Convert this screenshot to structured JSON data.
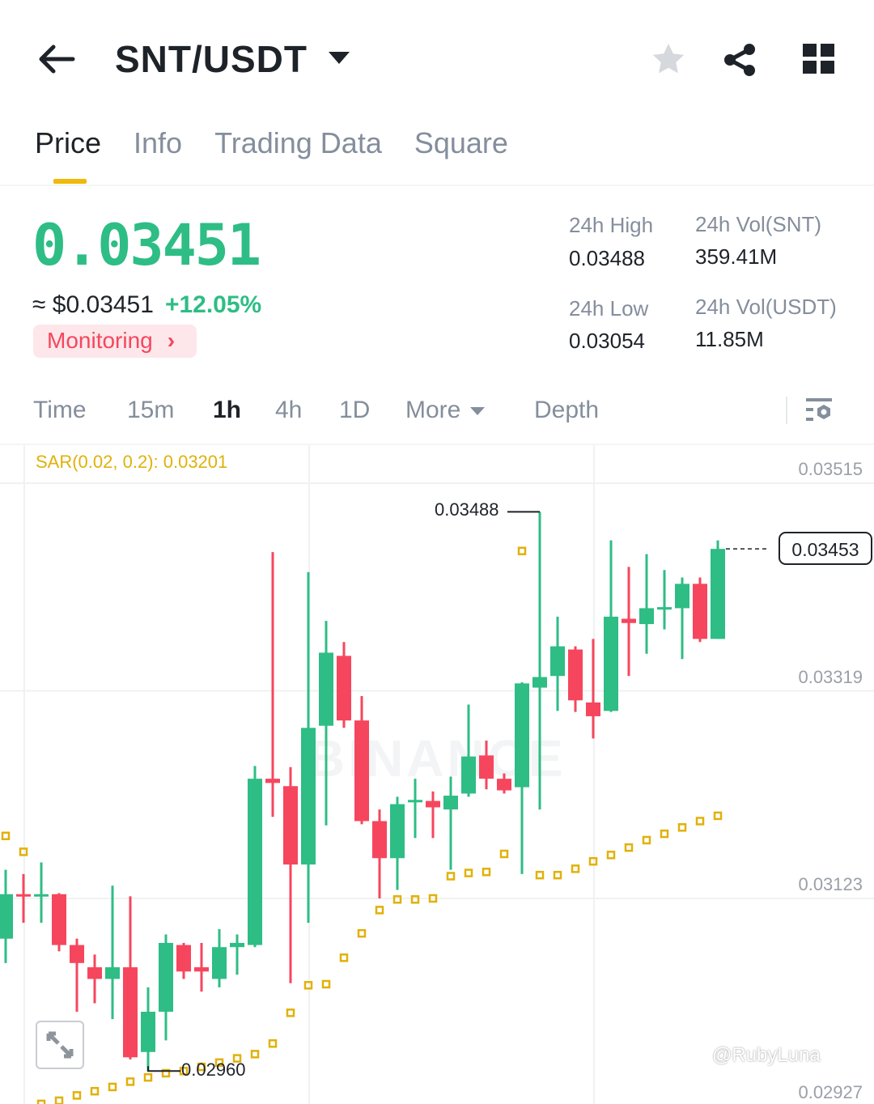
{
  "header": {
    "title": "SNT/USDT",
    "icons": [
      "back-arrow-icon",
      "caret-down-icon",
      "star-icon",
      "share-icon",
      "grid-icon"
    ]
  },
  "tabs": [
    {
      "label": "Price",
      "active": true
    },
    {
      "label": "Info"
    },
    {
      "label": "Trading Data"
    },
    {
      "label": "Square"
    }
  ],
  "ticker": {
    "last_price": "0.03451",
    "fiat_price": "≈ $0.03451",
    "change": "+12.05%",
    "badge": "Monitoring",
    "stats": {
      "high_label": "24h High",
      "high": "0.03488",
      "low_label": "24h Low",
      "low": "0.03054",
      "vol_base_label": "24h Vol(SNT)",
      "vol_base": "359.41M",
      "vol_quote_label": "24h Vol(USDT)",
      "vol_quote": "11.85M"
    }
  },
  "timeframes": [
    {
      "label": "Time"
    },
    {
      "label": "15m"
    },
    {
      "label": "1h",
      "active": true
    },
    {
      "label": "4h"
    },
    {
      "label": "1D"
    },
    {
      "label": "More"
    },
    {
      "label": "Depth"
    }
  ],
  "colors": {
    "up": "#2EBD85",
    "down": "#F6465D",
    "accent": "#F0B90B",
    "sar": "#E1B10A"
  },
  "chart": {
    "indicator_label": "SAR(0.02, 0.2): 0.03201",
    "watermark": "BINANCE",
    "axis_labels": [
      "0.03515",
      "0.03319",
      "0.03123",
      "0.02927"
    ],
    "current_price_label": "0.03453",
    "max_label": "0.03488",
    "min_label": "0.02960",
    "user_watermark": "@RubyLuna"
  },
  "chart_data": {
    "type": "candlestick",
    "interval": "1h",
    "ylim": [
      0.02927,
      0.03515
    ],
    "yticks": [
      0.03515,
      0.03319,
      0.03123,
      0.02927
    ],
    "grid": true,
    "candles": [
      [
        0.03085,
        0.0315,
        0.03062,
        0.03127
      ],
      [
        0.03127,
        0.03146,
        0.031,
        0.03125
      ],
      [
        0.03125,
        0.03157,
        0.031,
        0.03127
      ],
      [
        0.03127,
        0.03128,
        0.03073,
        0.03079
      ],
      [
        0.03079,
        0.03085,
        0.03016,
        0.03062
      ],
      [
        0.03058,
        0.0307,
        0.03024,
        0.03047
      ],
      [
        0.03047,
        0.03135,
        0.03009,
        0.03058
      ],
      [
        0.03058,
        0.03125,
        0.02971,
        0.02973
      ],
      [
        0.02978,
        0.03039,
        0.0296,
        0.03016
      ],
      [
        0.03016,
        0.03089,
        0.02989,
        0.03081
      ],
      [
        0.03079,
        0.03081,
        0.03047,
        0.03054
      ],
      [
        0.03058,
        0.03081,
        0.03035,
        0.03054
      ],
      [
        0.03047,
        0.03094,
        0.03039,
        0.03077
      ],
      [
        0.03077,
        0.03089,
        0.03051,
        0.03081
      ],
      [
        0.03079,
        0.03248,
        0.03077,
        0.03236
      ],
      [
        0.03236,
        0.0345,
        0.032,
        0.03232
      ],
      [
        0.03229,
        0.03247,
        0.03043,
        0.03155
      ],
      [
        0.03155,
        0.03431,
        0.031,
        0.03284
      ],
      [
        0.03286,
        0.03385,
        0.03192,
        0.03355
      ],
      [
        0.03352,
        0.03365,
        0.03284,
        0.03291
      ],
      [
        0.03291,
        0.03314,
        0.03193,
        0.03196
      ],
      [
        0.03196,
        0.03207,
        0.03123,
        0.03161
      ],
      [
        0.03161,
        0.03219,
        0.03131,
        0.03212
      ],
      [
        0.03215,
        0.03236,
        0.0318,
        0.03216
      ],
      [
        0.03215,
        0.03224,
        0.0318,
        0.03209
      ],
      [
        0.03207,
        0.03238,
        0.0315,
        0.0322
      ],
      [
        0.03222,
        0.03306,
        0.03219,
        0.03257
      ],
      [
        0.03258,
        0.03272,
        0.03226,
        0.03236
      ],
      [
        0.03236,
        0.03241,
        0.03222,
        0.03225
      ],
      [
        0.03228,
        0.03327,
        0.03146,
        0.03326
      ],
      [
        0.03322,
        0.03488,
        0.03207,
        0.03332
      ],
      [
        0.03333,
        0.03389,
        0.033,
        0.03361
      ],
      [
        0.03358,
        0.03361,
        0.03299,
        0.0331
      ],
      [
        0.03308,
        0.03368,
        0.03274,
        0.03295
      ],
      [
        0.033,
        0.03461,
        0.03299,
        0.03389
      ],
      [
        0.03387,
        0.03436,
        0.03333,
        0.03383
      ],
      [
        0.03382,
        0.03448,
        0.03354,
        0.03397
      ],
      [
        0.03396,
        0.03433,
        0.03377,
        0.03398
      ],
      [
        0.03397,
        0.03426,
        0.03349,
        0.0342
      ],
      [
        0.0342,
        0.03426,
        0.03365,
        0.03368
      ],
      [
        0.03368,
        0.03461,
        0.03368,
        0.03453
      ]
    ],
    "candle_fields": [
      "open",
      "high",
      "low",
      "close"
    ],
    "sar": [
      0.03182,
      0.03167,
      0.02929,
      0.02932,
      0.02937,
      0.02941,
      0.02945,
      0.0295,
      0.02954,
      0.02958,
      0.0296,
      0.02964,
      0.02968,
      0.02972,
      0.02976,
      0.02986,
      0.03015,
      0.03041,
      0.03042,
      0.03067,
      0.0309,
      0.03112,
      0.03122,
      0.03122,
      0.03123,
      0.03144,
      0.03147,
      0.03148,
      0.03165,
      0.03451,
      0.03145,
      0.03145,
      0.03151,
      0.03158,
      0.03164,
      0.03171,
      0.03178,
      0.03184,
      0.0319,
      0.03196,
      0.03201
    ]
  }
}
